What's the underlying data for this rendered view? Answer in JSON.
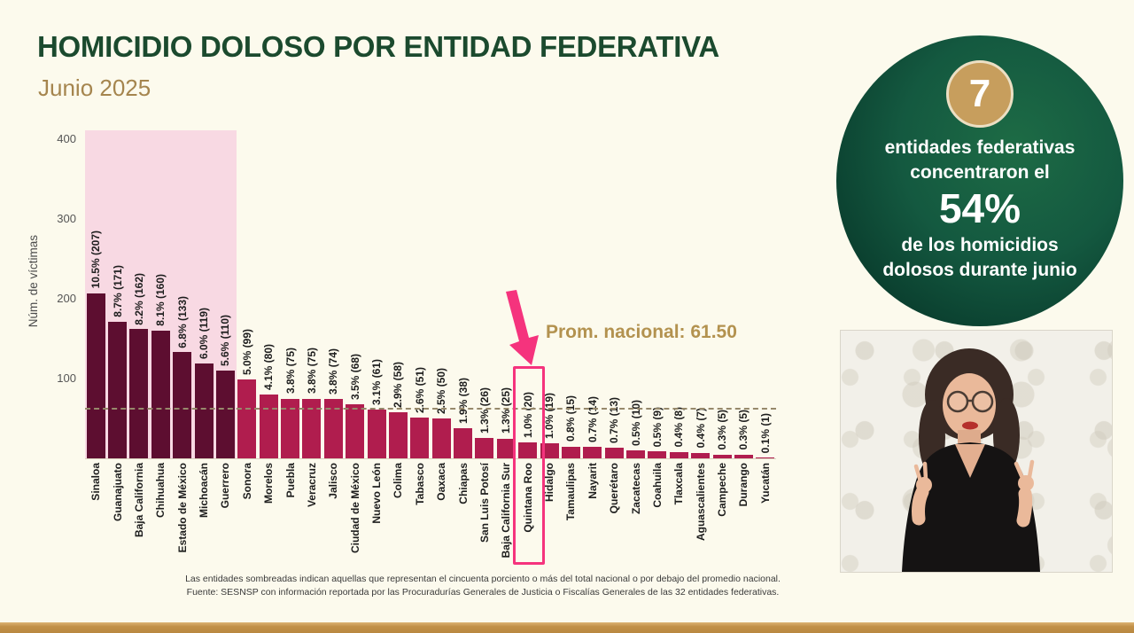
{
  "header": {
    "title": "HOMICIDIO DOLOSO POR ENTIDAD FEDERATIVA",
    "subtitle": "Junio 2025"
  },
  "chart_data": {
    "type": "bar",
    "title": "Homicidio doloso por entidad federativa, junio 2025",
    "ylabel": "Núm. de víctimas",
    "xlabel": "",
    "ylim": [
      0,
      411
    ],
    "yticks": [
      100,
      200,
      300,
      400
    ],
    "grid": false,
    "average_line": {
      "label": "Prom. nacional: 61.50",
      "value": 61.5
    },
    "shaded_bars": 7,
    "shaded_meaning": "entidades sombreadas (región rosa): primeras 7 entidades",
    "highlight": {
      "state": "Quintana Roo",
      "index": 20,
      "label": "1.0% (20)"
    },
    "bars": [
      {
        "name": "Sinaloa",
        "pct": 10.5,
        "count": 207
      },
      {
        "name": "Guanajuato",
        "pct": 8.7,
        "count": 171
      },
      {
        "name": "Baja California",
        "pct": 8.2,
        "count": 162
      },
      {
        "name": "Chihuahua",
        "pct": 8.1,
        "count": 160
      },
      {
        "name": "Estado de México",
        "pct": 6.8,
        "count": 133
      },
      {
        "name": "Michoacán",
        "pct": 6.0,
        "count": 119
      },
      {
        "name": "Guerrero",
        "pct": 5.6,
        "count": 110
      },
      {
        "name": "Sonora",
        "pct": 5.0,
        "count": 99
      },
      {
        "name": "Morelos",
        "pct": 4.1,
        "count": 80
      },
      {
        "name": "Puebla",
        "pct": 3.8,
        "count": 75
      },
      {
        "name": "Veracruz",
        "pct": 3.8,
        "count": 75
      },
      {
        "name": "Jalisco",
        "pct": 3.8,
        "count": 74
      },
      {
        "name": "Ciudad de México",
        "pct": 3.5,
        "count": 68
      },
      {
        "name": "Nuevo León",
        "pct": 3.1,
        "count": 61
      },
      {
        "name": "Colima",
        "pct": 2.9,
        "count": 58
      },
      {
        "name": "Tabasco",
        "pct": 2.6,
        "count": 51
      },
      {
        "name": "Oaxaca",
        "pct": 2.5,
        "count": 50
      },
      {
        "name": "Chiapas",
        "pct": 1.9,
        "count": 38
      },
      {
        "name": "San Luis Potosí",
        "pct": 1.3,
        "count": 26
      },
      {
        "name": "Baja California Sur",
        "pct": 1.3,
        "count": 25
      },
      {
        "name": "Quintana Roo",
        "pct": 1.0,
        "count": 20
      },
      {
        "name": "Hidalgo",
        "pct": 1.0,
        "count": 19
      },
      {
        "name": "Tamaulipas",
        "pct": 0.8,
        "count": 15
      },
      {
        "name": "Nayarit",
        "pct": 0.7,
        "count": 14
      },
      {
        "name": "Querétaro",
        "pct": 0.7,
        "count": 13
      },
      {
        "name": "Zacatecas",
        "pct": 0.5,
        "count": 10
      },
      {
        "name": "Coahuila",
        "pct": 0.5,
        "count": 9
      },
      {
        "name": "Tlaxcala",
        "pct": 0.4,
        "count": 8
      },
      {
        "name": "Aguascalientes",
        "pct": 0.4,
        "count": 7
      },
      {
        "name": "Campeche",
        "pct": 0.3,
        "count": 5
      },
      {
        "name": "Durango",
        "pct": 0.3,
        "count": 5
      },
      {
        "name": "Yucatán",
        "pct": 0.1,
        "count": 1
      }
    ]
  },
  "badge": {
    "number": "7",
    "line1": "entidades federativas",
    "line2": "concentraron el",
    "percent": "54%",
    "line3": "de los homicidios",
    "line4": "dolosos durante junio"
  },
  "footer": {
    "line1": "Las entidades sombreadas indican aquellas que representan el cincuenta porciento o más del total nacional o por debajo del promedio nacional.",
    "line2": "Fuente: SESNSP con información reportada por las Procuradurías Generales de Justicia o Fiscalías Generales de las 32 entidades federativas."
  },
  "colors": {
    "background": "#fcfaed",
    "title_green": "#1b4a2e",
    "accent_gold": "#b3924f",
    "bar_shaded": "#5d0e30",
    "bar_normal": "#b01d4e",
    "shaded_region_pink": "#f8d9e3",
    "highlight_pink": "#f5337d",
    "badge_green_dark": "#083122",
    "badge_gold": "#c79e5d",
    "bottom_bar_gold": "#c19048"
  }
}
